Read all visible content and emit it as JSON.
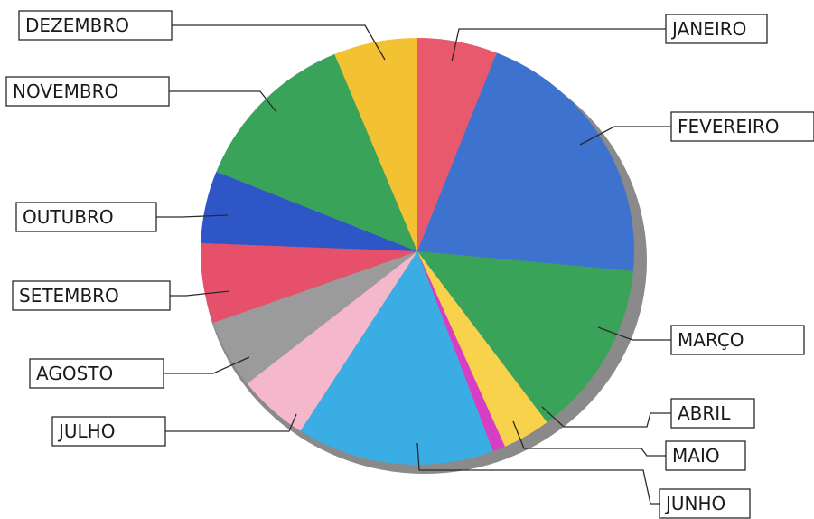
{
  "chart_data": {
    "type": "pie",
    "title": "",
    "categories": [
      "JANEIRO",
      "FEVEREIRO",
      "MARÇO",
      "ABRIL",
      "MAIO",
      "JUNHO",
      "JULHO",
      "AGOSTO",
      "SETEMBRO",
      "OUTUBRO",
      "NOVEMBRO",
      "DEZEMBRO"
    ],
    "values": [
      6.3,
      21.7,
      14.1,
      3.8,
      1.0,
      15.6,
      5.6,
      5.5,
      6.4,
      5.8,
      13.4,
      6.6
    ],
    "colors": [
      "#e8596e",
      "#3e72cf",
      "#3aa35a",
      "#f7d24a",
      "#d83ec4",
      "#3aaee4",
      "#f5b7cb",
      "#9b9b9b",
      "#e6506b",
      "#2e56c7",
      "#3aa35a",
      "#f2c232"
    ],
    "legend": "callout labels around pie",
    "start": "top, clockwise"
  }
}
